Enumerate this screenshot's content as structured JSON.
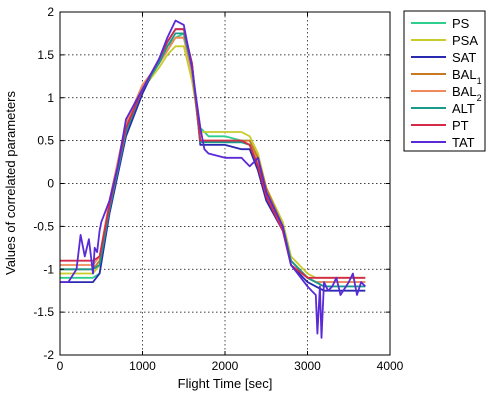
{
  "chart_data": {
    "type": "line",
    "title": "",
    "xlabel": "Flight Time [sec]",
    "ylabel": "Values of correlated parameters",
    "xlim": [
      0,
      4000
    ],
    "ylim": [
      -2,
      2
    ],
    "xticks": [
      "0",
      "1000",
      "2000",
      "3000",
      "4000"
    ],
    "yticks": [
      "-2",
      "-1.5",
      "-1",
      "-0.5",
      "0",
      "0.5",
      "1",
      "1.5",
      "2"
    ],
    "grid": true,
    "legend_position": "outside-right",
    "series": [
      {
        "name": "PS",
        "label_main": "PS",
        "label_sub": "",
        "color": "#2ecf8e",
        "x": [
          0,
          400,
          480,
          600,
          800,
          1000,
          1200,
          1300,
          1400,
          1500,
          1600,
          1700,
          1800,
          2000,
          2200,
          2300,
          2400,
          2500,
          2700,
          2800,
          3000,
          3100,
          3200,
          3400,
          3600,
          3700
        ],
        "y": [
          -1.1,
          -1.1,
          -1.05,
          -0.3,
          0.6,
          1.1,
          1.4,
          1.6,
          1.7,
          1.75,
          1.3,
          0.65,
          0.55,
          0.55,
          0.5,
          0.5,
          0.25,
          -0.1,
          -0.5,
          -0.9,
          -1.1,
          -1.15,
          -1.2,
          -1.2,
          -1.2,
          -1.2
        ]
      },
      {
        "name": "PSA",
        "label_main": "PSA",
        "label_sub": "",
        "color": "#c8cc2a",
        "x": [
          0,
          400,
          480,
          600,
          800,
          1000,
          1200,
          1300,
          1400,
          1500,
          1600,
          1700,
          1800,
          2000,
          2200,
          2300,
          2400,
          2500,
          2700,
          2800,
          3000,
          3100,
          3200,
          3400,
          3600,
          3700
        ],
        "y": [
          -1.05,
          -1.05,
          -0.95,
          -0.25,
          0.7,
          1.1,
          1.35,
          1.5,
          1.6,
          1.6,
          1.2,
          0.6,
          0.6,
          0.6,
          0.6,
          0.55,
          0.35,
          -0.05,
          -0.45,
          -0.85,
          -1.05,
          -1.1,
          -1.1,
          -1.1,
          -1.1,
          -1.1
        ]
      },
      {
        "name": "SAT",
        "label_main": "SAT",
        "label_sub": "",
        "color": "#2a2ab0",
        "x": [
          0,
          400,
          480,
          600,
          800,
          1000,
          1200,
          1300,
          1400,
          1500,
          1600,
          1700,
          1800,
          2000,
          2200,
          2300,
          2400,
          2500,
          2700,
          2800,
          3000,
          3100,
          3200,
          3400,
          3600,
          3700
        ],
        "y": [
          -1.15,
          -1.15,
          -1.05,
          -0.35,
          0.55,
          1.05,
          1.45,
          1.65,
          1.8,
          1.8,
          1.4,
          0.45,
          0.45,
          0.45,
          0.4,
          0.4,
          0.15,
          -0.2,
          -0.55,
          -0.95,
          -1.15,
          -1.2,
          -1.25,
          -1.25,
          -1.25,
          -1.25
        ]
      },
      {
        "name": "BAL",
        "label_main": "BAL",
        "label_sub": "1",
        "color": "#c87820",
        "x": [
          0,
          400,
          480,
          600,
          800,
          1000,
          1200,
          1300,
          1400,
          1500,
          1600,
          1700,
          1800,
          2000,
          2200,
          2300,
          2400,
          2500,
          2700,
          2800,
          3000,
          3100,
          3200,
          3400,
          3600,
          3700
        ],
        "y": [
          -1.0,
          -1.0,
          -0.9,
          -0.2,
          0.7,
          1.15,
          1.4,
          1.55,
          1.7,
          1.7,
          1.3,
          0.5,
          0.5,
          0.5,
          0.5,
          0.5,
          0.3,
          -0.05,
          -0.5,
          -0.9,
          -1.1,
          -1.15,
          -1.15,
          -1.15,
          -1.15,
          -1.15
        ]
      },
      {
        "name": "BAL",
        "label_main": "BAL",
        "label_sub": "2",
        "color": "#f08a5a",
        "x": [
          0,
          400,
          480,
          600,
          800,
          1000,
          1200,
          1300,
          1400,
          1500,
          1600,
          1700,
          1800,
          2000,
          2200,
          2300,
          2400,
          2500,
          2700,
          2800,
          3000,
          3100,
          3200,
          3400,
          3600,
          3700
        ],
        "y": [
          -0.95,
          -0.95,
          -0.85,
          -0.2,
          0.7,
          1.15,
          1.4,
          1.55,
          1.7,
          1.7,
          1.3,
          0.5,
          0.5,
          0.5,
          0.5,
          0.45,
          0.25,
          -0.1,
          -0.5,
          -0.9,
          -1.1,
          -1.15,
          -1.15,
          -1.15,
          -1.15,
          -1.15
        ]
      },
      {
        "name": "ALT",
        "label_main": "ALT",
        "label_sub": "",
        "color": "#1a9a8a",
        "x": [
          0,
          400,
          480,
          600,
          800,
          1000,
          1200,
          1300,
          1400,
          1500,
          1600,
          1700,
          1800,
          2000,
          2200,
          2300,
          2400,
          2500,
          2700,
          2800,
          3000,
          3100,
          3200,
          3400,
          3600,
          3700
        ],
        "y": [
          -1.0,
          -1.0,
          -0.95,
          -0.3,
          0.6,
          1.1,
          1.4,
          1.6,
          1.75,
          1.75,
          1.35,
          0.48,
          0.48,
          0.48,
          0.48,
          0.45,
          0.2,
          -0.1,
          -0.5,
          -0.9,
          -1.1,
          -1.15,
          -1.2,
          -1.2,
          -1.2,
          -1.2
        ]
      },
      {
        "name": "PT",
        "label_main": "PT",
        "label_sub": "",
        "color": "#d62a4a",
        "x": [
          0,
          400,
          480,
          600,
          800,
          1000,
          1200,
          1300,
          1400,
          1500,
          1600,
          1700,
          1800,
          2000,
          2200,
          2300,
          2400,
          2500,
          2700,
          2800,
          3000,
          3100,
          3200,
          3400,
          3600,
          3700
        ],
        "y": [
          -0.9,
          -0.9,
          -0.85,
          -0.25,
          0.65,
          1.1,
          1.45,
          1.65,
          1.8,
          1.8,
          1.4,
          0.5,
          0.5,
          0.5,
          0.5,
          0.45,
          0.2,
          -0.15,
          -0.55,
          -0.95,
          -1.1,
          -1.1,
          -1.1,
          -1.1,
          -1.1,
          -1.1
        ]
      },
      {
        "name": "TAT",
        "label_main": "TAT",
        "label_sub": "",
        "color": "#5a2ad6",
        "x": [
          0,
          100,
          200,
          250,
          300,
          350,
          400,
          420,
          450,
          480,
          500,
          600,
          700,
          800,
          1000,
          1200,
          1300,
          1400,
          1500,
          1600,
          1700,
          1750,
          1800,
          2000,
          2100,
          2200,
          2250,
          2300,
          2350,
          2400,
          2500,
          2700,
          2800,
          3000,
          3050,
          3100,
          3120,
          3150,
          3170,
          3200,
          3250,
          3300,
          3350,
          3400,
          3500,
          3550,
          3600,
          3650,
          3700
        ],
        "y": [
          -1.15,
          -1.15,
          -1.0,
          -0.6,
          -0.85,
          -0.65,
          -1.05,
          -0.75,
          -0.8,
          -0.55,
          -0.45,
          -0.2,
          0.2,
          0.75,
          1.1,
          1.45,
          1.7,
          1.9,
          1.85,
          1.35,
          0.65,
          0.4,
          0.35,
          0.3,
          0.3,
          0.3,
          0.25,
          0.2,
          0.25,
          0.3,
          -0.1,
          -0.5,
          -0.95,
          -1.2,
          -1.25,
          -1.3,
          -1.75,
          -1.2,
          -1.8,
          -1.15,
          -1.25,
          -1.2,
          -1.1,
          -1.3,
          -1.15,
          -1.05,
          -1.3,
          -1.15,
          -1.2
        ]
      }
    ]
  }
}
